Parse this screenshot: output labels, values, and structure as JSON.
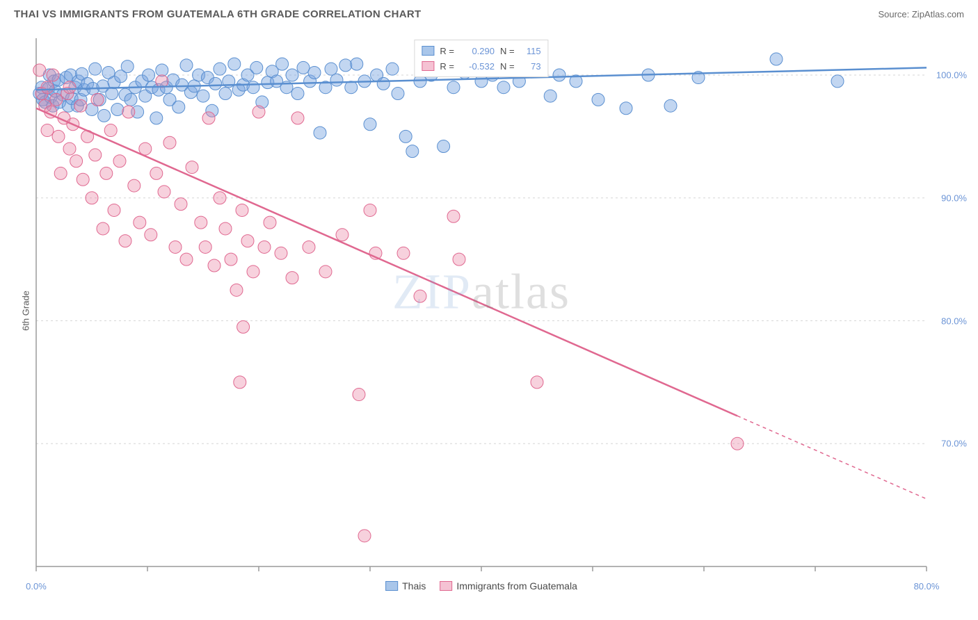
{
  "title": "THAI VS IMMIGRANTS FROM GUATEMALA 6TH GRADE CORRELATION CHART",
  "source": "Source: ZipAtlas.com",
  "ylabel": "6th Grade",
  "watermark_zip": "ZIP",
  "watermark_atlas": "atlas",
  "chart": {
    "type": "scatter",
    "xlim": [
      0,
      80
    ],
    "ylim": [
      60,
      103
    ],
    "xticks": [
      0,
      10,
      20,
      30,
      40,
      50,
      60,
      70,
      80
    ],
    "xtick_labels": {
      "0": "0.0%",
      "80": "80.0%"
    },
    "yticks": [
      70,
      80,
      90,
      100
    ],
    "ytick_labels": {
      "70": "70.0%",
      "80": "80.0%",
      "90": "90.0%",
      "100": "100.0%"
    },
    "background_color": "#ffffff",
    "grid_color": "#d6d6d6",
    "axis_color": "#9a9a9a",
    "series": [
      {
        "name": "Thais",
        "color_fill": "rgba(120,165,225,0.45)",
        "color_stroke": "#5a8fd0",
        "legend_sw_fill": "#a9c6ea",
        "legend_sw_border": "#5a8fd0",
        "R": "0.290",
        "N": "115",
        "trend": {
          "x1": 0,
          "y1": 98.8,
          "x2": 80,
          "y2": 100.6,
          "solid_to_x": 80
        },
        "marker_r": 9,
        "points": [
          [
            0.3,
            98.5
          ],
          [
            0.5,
            99.0
          ],
          [
            0.6,
            98.0
          ],
          [
            0.8,
            97.8
          ],
          [
            1.1,
            98.9
          ],
          [
            1.2,
            100.0
          ],
          [
            1.3,
            98.2
          ],
          [
            1.5,
            97.5
          ],
          [
            1.6,
            99.5
          ],
          [
            1.7,
            98.7
          ],
          [
            2.0,
            99.6
          ],
          [
            2.1,
            97.8
          ],
          [
            2.4,
            98.4
          ],
          [
            2.7,
            99.8
          ],
          [
            2.9,
            97.5
          ],
          [
            3.1,
            100.0
          ],
          [
            3.2,
            98.1
          ],
          [
            3.5,
            99.0
          ],
          [
            3.7,
            97.5
          ],
          [
            3.8,
            99.5
          ],
          [
            4.0,
            98.0
          ],
          [
            4.1,
            100.1
          ],
          [
            4.3,
            98.8
          ],
          [
            4.6,
            99.3
          ],
          [
            5.0,
            97.2
          ],
          [
            5.1,
            98.9
          ],
          [
            5.3,
            100.5
          ],
          [
            5.7,
            98.0
          ],
          [
            6.0,
            99.1
          ],
          [
            6.1,
            96.7
          ],
          [
            6.5,
            100.2
          ],
          [
            6.8,
            98.5
          ],
          [
            7.0,
            99.4
          ],
          [
            7.3,
            97.2
          ],
          [
            7.6,
            99.9
          ],
          [
            8.0,
            98.4
          ],
          [
            8.2,
            100.7
          ],
          [
            8.5,
            98.0
          ],
          [
            8.9,
            99.0
          ],
          [
            9.1,
            97.0
          ],
          [
            9.5,
            99.5
          ],
          [
            9.8,
            98.3
          ],
          [
            10.1,
            100.0
          ],
          [
            10.4,
            99.0
          ],
          [
            10.8,
            96.5
          ],
          [
            11.0,
            98.8
          ],
          [
            11.3,
            100.4
          ],
          [
            11.7,
            99.0
          ],
          [
            12.0,
            98.0
          ],
          [
            12.3,
            99.6
          ],
          [
            12.8,
            97.4
          ],
          [
            13.1,
            99.2
          ],
          [
            13.5,
            100.8
          ],
          [
            13.9,
            98.6
          ],
          [
            14.2,
            99.1
          ],
          [
            14.6,
            100.0
          ],
          [
            15.0,
            98.3
          ],
          [
            15.4,
            99.8
          ],
          [
            15.8,
            97.1
          ],
          [
            16.1,
            99.3
          ],
          [
            16.5,
            100.5
          ],
          [
            17.0,
            98.5
          ],
          [
            17.3,
            99.5
          ],
          [
            17.8,
            100.9
          ],
          [
            18.2,
            98.8
          ],
          [
            18.6,
            99.2
          ],
          [
            19.0,
            100.0
          ],
          [
            19.5,
            99.0
          ],
          [
            19.8,
            100.6
          ],
          [
            20.3,
            97.8
          ],
          [
            20.8,
            99.4
          ],
          [
            21.2,
            100.3
          ],
          [
            21.6,
            99.5
          ],
          [
            22.1,
            100.9
          ],
          [
            22.5,
            99.0
          ],
          [
            23.0,
            100.0
          ],
          [
            23.5,
            98.5
          ],
          [
            24.0,
            100.6
          ],
          [
            24.6,
            99.5
          ],
          [
            25.0,
            100.2
          ],
          [
            25.5,
            95.3
          ],
          [
            26.0,
            99.0
          ],
          [
            26.5,
            100.5
          ],
          [
            27.0,
            99.6
          ],
          [
            27.8,
            100.8
          ],
          [
            28.3,
            99.0
          ],
          [
            28.8,
            100.9
          ],
          [
            29.5,
            99.5
          ],
          [
            30.0,
            96.0
          ],
          [
            30.6,
            100.0
          ],
          [
            31.2,
            99.3
          ],
          [
            32.0,
            100.5
          ],
          [
            32.5,
            98.5
          ],
          [
            33.2,
            95.0
          ],
          [
            33.8,
            93.8
          ],
          [
            34.5,
            99.5
          ],
          [
            35.5,
            100.0
          ],
          [
            36.6,
            94.2
          ],
          [
            37.5,
            99.0
          ],
          [
            38.5,
            100.2
          ],
          [
            40.0,
            99.5
          ],
          [
            41.0,
            100.0
          ],
          [
            42.0,
            99.0
          ],
          [
            43.4,
            99.5
          ],
          [
            45.0,
            100.3
          ],
          [
            46.2,
            98.3
          ],
          [
            47.0,
            100.0
          ],
          [
            48.5,
            99.5
          ],
          [
            50.5,
            98.0
          ],
          [
            53.0,
            97.3
          ],
          [
            55.0,
            100.0
          ],
          [
            57.0,
            97.5
          ],
          [
            59.5,
            99.8
          ],
          [
            66.5,
            101.3
          ],
          [
            72.0,
            99.5
          ]
        ]
      },
      {
        "name": "Immigrants from Guatemala",
        "color_fill": "rgba(235,135,165,0.38)",
        "color_stroke": "#e06890",
        "legend_sw_fill": "#f5c2d3",
        "legend_sw_border": "#e06890",
        "R": "-0.532",
        "N": "73",
        "trend": {
          "x1": 0,
          "y1": 97.3,
          "x2": 80,
          "y2": 65.5,
          "solid_to_x": 63
        },
        "marker_r": 9,
        "points": [
          [
            0.3,
            100.4
          ],
          [
            0.5,
            98.5
          ],
          [
            0.8,
            97.5
          ],
          [
            1.0,
            95.5
          ],
          [
            1.0,
            99.0
          ],
          [
            1.3,
            97.0
          ],
          [
            1.5,
            100.0
          ],
          [
            1.8,
            98.0
          ],
          [
            2.0,
            95.0
          ],
          [
            2.2,
            92.0
          ],
          [
            2.5,
            96.5
          ],
          [
            2.8,
            98.5
          ],
          [
            3.0,
            94.0
          ],
          [
            3.0,
            99.0
          ],
          [
            3.3,
            96.0
          ],
          [
            3.6,
            93.0
          ],
          [
            4.0,
            97.5
          ],
          [
            4.2,
            91.5
          ],
          [
            4.6,
            95.0
          ],
          [
            5.0,
            90.0
          ],
          [
            5.3,
            93.5
          ],
          [
            5.5,
            98.0
          ],
          [
            6.0,
            87.5
          ],
          [
            6.3,
            92.0
          ],
          [
            6.7,
            95.5
          ],
          [
            7.0,
            89.0
          ],
          [
            7.5,
            93.0
          ],
          [
            8.0,
            86.5
          ],
          [
            8.3,
            97.0
          ],
          [
            8.8,
            91.0
          ],
          [
            9.3,
            88.0
          ],
          [
            9.8,
            94.0
          ],
          [
            10.3,
            87.0
          ],
          [
            10.8,
            92.0
          ],
          [
            11.3,
            99.5
          ],
          [
            11.5,
            90.5
          ],
          [
            12.0,
            94.5
          ],
          [
            12.5,
            86.0
          ],
          [
            13.0,
            89.5
          ],
          [
            13.5,
            85.0
          ],
          [
            14.0,
            92.5
          ],
          [
            14.8,
            88.0
          ],
          [
            15.2,
            86.0
          ],
          [
            15.5,
            96.5
          ],
          [
            16.0,
            84.5
          ],
          [
            16.5,
            90.0
          ],
          [
            17.0,
            87.5
          ],
          [
            17.5,
            85.0
          ],
          [
            18.0,
            82.5
          ],
          [
            18.5,
            89.0
          ],
          [
            19.0,
            86.5
          ],
          [
            19.5,
            84.0
          ],
          [
            20.0,
            97.0
          ],
          [
            20.5,
            86.0
          ],
          [
            21.0,
            88.0
          ],
          [
            22.0,
            85.5
          ],
          [
            23.0,
            83.5
          ],
          [
            23.5,
            96.5
          ],
          [
            24.5,
            86.0
          ],
          [
            26.0,
            84.0
          ],
          [
            27.5,
            87.0
          ],
          [
            18.3,
            75.0
          ],
          [
            18.6,
            79.5
          ],
          [
            29.0,
            74.0
          ],
          [
            30.0,
            89.0
          ],
          [
            30.5,
            85.5
          ],
          [
            33.0,
            85.5
          ],
          [
            34.5,
            82.0
          ],
          [
            37.5,
            88.5
          ],
          [
            38.0,
            85.0
          ],
          [
            29.5,
            62.5
          ],
          [
            45.0,
            75.0
          ],
          [
            63.0,
            70.0
          ]
        ]
      }
    ]
  },
  "legend_bottom": [
    {
      "label": "Thais",
      "fill": "#a9c6ea",
      "border": "#5a8fd0"
    },
    {
      "label": "Immigrants from Guatemala",
      "fill": "#f5c2d3",
      "border": "#e06890"
    }
  ]
}
